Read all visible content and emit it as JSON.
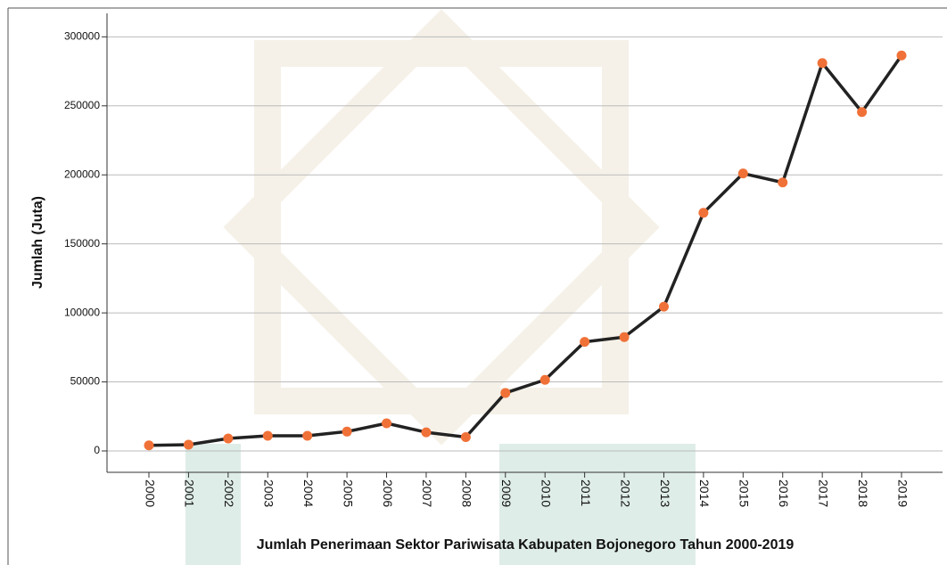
{
  "chart_data": {
    "type": "line",
    "x_label": "Jumlah Penerimaan Sektor Pariwisata Kabupaten Bojonegoro Tahun 2000-2019",
    "y_label": "Jumlah (Juta)",
    "categories": [
      "2000",
      "2001",
      "2002",
      "2003",
      "2004",
      "2005",
      "2006",
      "2007",
      "2008",
      "2009",
      "2010",
      "2011",
      "2012",
      "2013",
      "2014",
      "2015",
      "2016",
      "2017",
      "2018",
      "2019"
    ],
    "values": [
      4000,
      4500,
      9000,
      11000,
      11000,
      14000,
      20000,
      13500,
      10000,
      42000,
      51500,
      79000,
      82500,
      104500,
      172500,
      201000,
      194500,
      281000,
      245500,
      286500
    ],
    "color": "#222222",
    "marker_color": "#f07138",
    "ylim": [
      -15500,
      317000
    ],
    "yticks": [
      0,
      50000,
      100000,
      150000,
      200000,
      250000,
      300000
    ],
    "grid": true
  }
}
